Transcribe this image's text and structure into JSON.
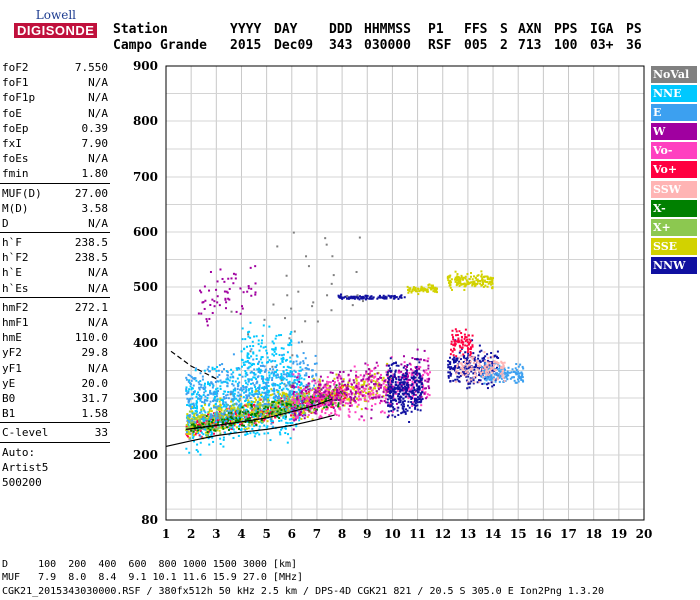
{
  "logo": {
    "line1": "Lowell",
    "line2": "DIGISONDE"
  },
  "header": {
    "labels": [
      "Station",
      "YYYY",
      "DAY",
      "DDD",
      "HHMMSS",
      "P1",
      "FFS",
      "S",
      "AXN",
      "PPS",
      "IGA",
      "PS"
    ],
    "values": [
      "Campo Grande",
      "2015",
      "Dec09",
      "343",
      "030000",
      "RSF",
      "005",
      "2",
      "713",
      "100",
      "03+",
      "36"
    ]
  },
  "params": {
    "group1": [
      {
        "k": "foF2",
        "v": "7.550"
      },
      {
        "k": "foF1",
        "v": "N/A"
      },
      {
        "k": "foF1p",
        "v": "N/A"
      },
      {
        "k": "foE",
        "v": "N/A"
      },
      {
        "k": "foEp",
        "v": "0.39"
      },
      {
        "k": "fxI",
        "v": "7.90"
      },
      {
        "k": "foEs",
        "v": "N/A"
      },
      {
        "k": "fmin",
        "v": "1.80"
      }
    ],
    "group2": [
      {
        "k": "MUF(D)",
        "v": "27.00"
      },
      {
        "k": "M(D)",
        "v": "3.58"
      },
      {
        "k": "D",
        "v": "N/A"
      }
    ],
    "group3": [
      {
        "k": "h`F",
        "v": "238.5"
      },
      {
        "k": "h`F2",
        "v": "238.5"
      },
      {
        "k": "h`E",
        "v": "N/A"
      },
      {
        "k": "h`Es",
        "v": "N/A"
      }
    ],
    "group4": [
      {
        "k": "hmF2",
        "v": "272.1"
      },
      {
        "k": "hmF1",
        "v": "N/A"
      },
      {
        "k": "hmE",
        "v": "110.0"
      },
      {
        "k": "yF2",
        "v": "29.8"
      },
      {
        "k": "yF1",
        "v": "N/A"
      },
      {
        "k": "yE",
        "v": "20.0"
      },
      {
        "k": "B0",
        "v": "31.7"
      },
      {
        "k": "B1",
        "v": "1.58"
      }
    ],
    "group5": [
      {
        "k": "C-level",
        "v": "33"
      }
    ],
    "auto": [
      "Auto:",
      "Artist5",
      "500200"
    ]
  },
  "legend": [
    {
      "name": "NoVal",
      "color": "#808080"
    },
    {
      "name": "NNE",
      "color": "#00c8ff"
    },
    {
      "name": "E",
      "color": "#3ca0f0"
    },
    {
      "name": "W",
      "color": "#a000a0"
    },
    {
      "name": "Vo-",
      "color": "#ff40c0"
    },
    {
      "name": "Vo+",
      "color": "#ff0040"
    },
    {
      "name": "SSW",
      "color": "#ffb4b4"
    },
    {
      "name": "X-",
      "color": "#008000"
    },
    {
      "name": "X+",
      "color": "#8cc850"
    },
    {
      "name": "SSE",
      "color": "#d2d200"
    },
    {
      "name": "NNW",
      "color": "#1010a0"
    }
  ],
  "footer": {
    "line1": "D     100  200  400  600  800 1000 1500 3000 [km]",
    "line2": "MUF   7.9  8.0  8.4  9.1 10.1 11.6 15.9 27.0 [MHz]",
    "line3": "CGK21_2015343030000.RSF / 380fx512h 50 kHz 2.5 km / DPS-4D CGK21 821 / 20.5 S 305.0 E Ion2Png 1.3.20"
  },
  "chart_data": {
    "type": "scatter",
    "xlim": [
      1,
      20
    ],
    "ylim": [
      80,
      900
    ],
    "x_ticks": [
      1,
      2,
      3,
      4,
      5,
      6,
      7,
      8,
      9,
      10,
      11,
      12,
      13,
      14,
      15,
      16,
      17,
      18,
      19,
      20
    ],
    "y_ticks": [
      80,
      200,
      300,
      400,
      500,
      600,
      700,
      800,
      900
    ],
    "grid": true,
    "clusters": [
      {
        "color": "#ff0040",
        "xr": [
          1.8,
          8.2
        ],
        "y0": 245,
        "slope": 10,
        "spread": 15,
        "n": 600
      },
      {
        "color": "#00c8ff",
        "xr": [
          1.8,
          6.5
        ],
        "y0": 270,
        "slope": 8,
        "spread": 60,
        "n": 700
      },
      {
        "color": "#d2d200",
        "xr": [
          1.8,
          10.0
        ],
        "y0": 255,
        "slope": 9,
        "spread": 25,
        "n": 500
      },
      {
        "color": "#8cc850",
        "xr": [
          1.8,
          8.0
        ],
        "y0": 250,
        "slope": 9,
        "spread": 18,
        "n": 250
      },
      {
        "color": "#008000",
        "xr": [
          2.0,
          8.0
        ],
        "y0": 245,
        "slope": 10,
        "spread": 15,
        "n": 200
      },
      {
        "color": "#3ca0f0",
        "xr": [
          1.8,
          7.0
        ],
        "y0": 295,
        "slope": 8,
        "spread": 50,
        "n": 400
      },
      {
        "color": "#ff40c0",
        "xr": [
          6.0,
          11.5
        ],
        "y0": 290,
        "slope": 8,
        "spread": 35,
        "n": 400
      },
      {
        "color": "#a000a0",
        "xr": [
          6.0,
          11.5
        ],
        "y0": 295,
        "slope": 8,
        "spread": 35,
        "n": 300
      },
      {
        "color": "#1010a0",
        "xr": [
          9.8,
          11.2
        ],
        "y0": 315,
        "slope": 0,
        "spread": 40,
        "n": 300
      },
      {
        "color": "#1010a0",
        "xr": [
          12.2,
          14.2
        ],
        "y0": 355,
        "slope": 0,
        "spread": 30,
        "n": 250
      },
      {
        "color": "#3ca0f0",
        "xr": [
          13.5,
          15.2
        ],
        "y0": 345,
        "slope": 0,
        "spread": 15,
        "n": 150
      },
      {
        "color": "#ffb4b4",
        "xr": [
          12.5,
          14.5
        ],
        "y0": 355,
        "slope": 0,
        "spread": 20,
        "n": 120
      },
      {
        "color": "#ff0040",
        "xr": [
          12.3,
          13.2
        ],
        "y0": 400,
        "slope": 0,
        "spread": 20,
        "n": 80
      },
      {
        "color": "#1010a0",
        "xr": [
          7.8,
          10.5
        ],
        "y0": 482,
        "slope": 0,
        "spread": 3,
        "n": 100
      },
      {
        "color": "#d2d200",
        "xr": [
          10.6,
          11.8
        ],
        "y0": 495,
        "slope": 2,
        "spread": 6,
        "n": 80
      },
      {
        "color": "#d2d200",
        "xr": [
          12.2,
          14.0
        ],
        "y0": 510,
        "slope": 0,
        "spread": 12,
        "n": 160
      },
      {
        "color": "#a000a0",
        "xr": [
          2.3,
          4.6
        ],
        "y0": 470,
        "slope": 10,
        "spread": 40,
        "n": 60
      },
      {
        "color": "#00c8ff",
        "xr": [
          4.0,
          6.0
        ],
        "y0": 380,
        "slope": 0,
        "spread": 40,
        "n": 120
      },
      {
        "color": "#808080",
        "xr": [
          3.5,
          9.0
        ],
        "y0": 400,
        "slope": 25,
        "spread": 120,
        "n": 40
      }
    ],
    "curves": [
      {
        "style": "solid",
        "x": [
          1.0,
          2.0,
          3.0,
          4.0,
          5.0,
          6.0,
          7.0,
          7.7
        ],
        "y": [
          215,
          225,
          234,
          240,
          245,
          252,
          262,
          270
        ]
      },
      {
        "style": "dashed",
        "x": [
          1.2,
          2.0,
          3.0
        ],
        "y": [
          385,
          358,
          335
        ]
      },
      {
        "style": "solid",
        "x": [
          1.8,
          3.0,
          4.0,
          5.0,
          6.0,
          7.0,
          7.6
        ],
        "y": [
          245,
          252,
          258,
          265,
          276,
          288,
          298
        ]
      }
    ]
  }
}
